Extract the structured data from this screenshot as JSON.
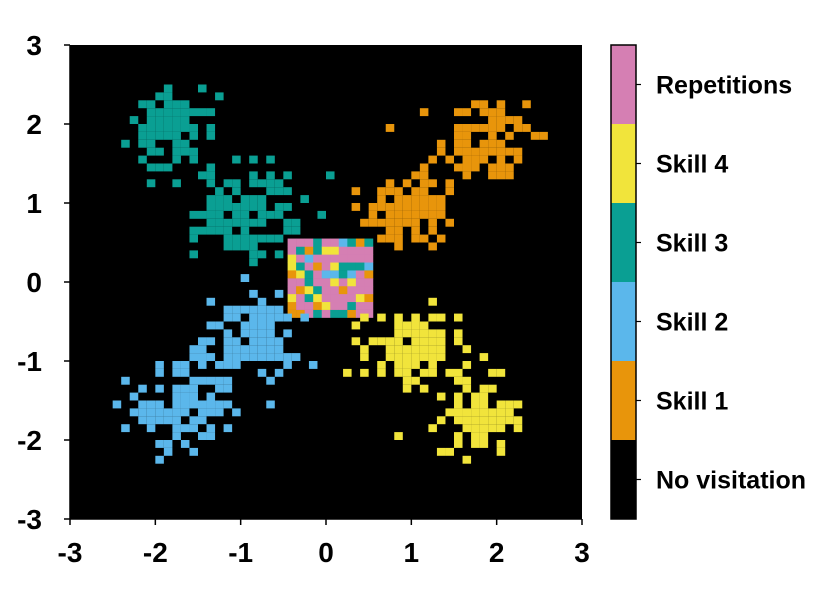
{
  "chart_data": {
    "type": "heatmap",
    "title": "",
    "xlabel": "",
    "ylabel": "",
    "xlim": [
      -3,
      3
    ],
    "ylim": [
      -3,
      3
    ],
    "x_ticks": [
      -3,
      -2,
      -1,
      0,
      1,
      2,
      3
    ],
    "y_ticks": [
      -3,
      -2,
      -1,
      0,
      1,
      2,
      3
    ],
    "x_tick_labels": [
      "-3",
      "-2",
      "-1",
      "0",
      "1",
      "2",
      "3"
    ],
    "y_tick_labels": [
      "-3",
      "-2",
      "-1",
      "0",
      "1",
      "2",
      "3"
    ],
    "grid": false,
    "background_color": "#000000",
    "cell_size": 0.1,
    "legend_position": "right",
    "categories": [
      {
        "label": "No visitation",
        "color": "#000000"
      },
      {
        "label": "Skill 1",
        "color": "#E8950B"
      },
      {
        "label": "Skill 2",
        "color": "#5BB7EB"
      },
      {
        "label": "Skill 3",
        "color": "#0A9F93"
      },
      {
        "label": "Skill 4",
        "color": "#F1E43B"
      },
      {
        "label": "Repetitions",
        "color": "#D57FB3"
      }
    ],
    "clusters": [
      {
        "category": "Skill 1",
        "center": [
          1.9,
          1.8
        ],
        "spread": 0.28,
        "count": 95
      },
      {
        "category": "Skill 1",
        "center": [
          1.0,
          0.9
        ],
        "spread": 0.28,
        "count": 110
      },
      {
        "category": "Skill 2",
        "center": [
          -1.7,
          -1.6
        ],
        "spread": 0.28,
        "count": 100
      },
      {
        "category": "Skill 2",
        "center": [
          -0.9,
          -0.7
        ],
        "spread": 0.28,
        "count": 105
      },
      {
        "category": "Skill 3",
        "center": [
          -1.8,
          1.9
        ],
        "spread": 0.25,
        "count": 80
      },
      {
        "category": "Skill 3",
        "center": [
          -0.9,
          0.9
        ],
        "spread": 0.3,
        "count": 110
      },
      {
        "category": "Skill 4",
        "center": [
          1.0,
          -0.9
        ],
        "spread": 0.28,
        "count": 105
      },
      {
        "category": "Skill 4",
        "center": [
          1.8,
          -1.7
        ],
        "spread": 0.22,
        "count": 85
      }
    ],
    "center_square": {
      "x_range": [
        -0.45,
        0.55
      ],
      "y_range": [
        -0.45,
        0.55
      ],
      "mixed": true
    }
  }
}
